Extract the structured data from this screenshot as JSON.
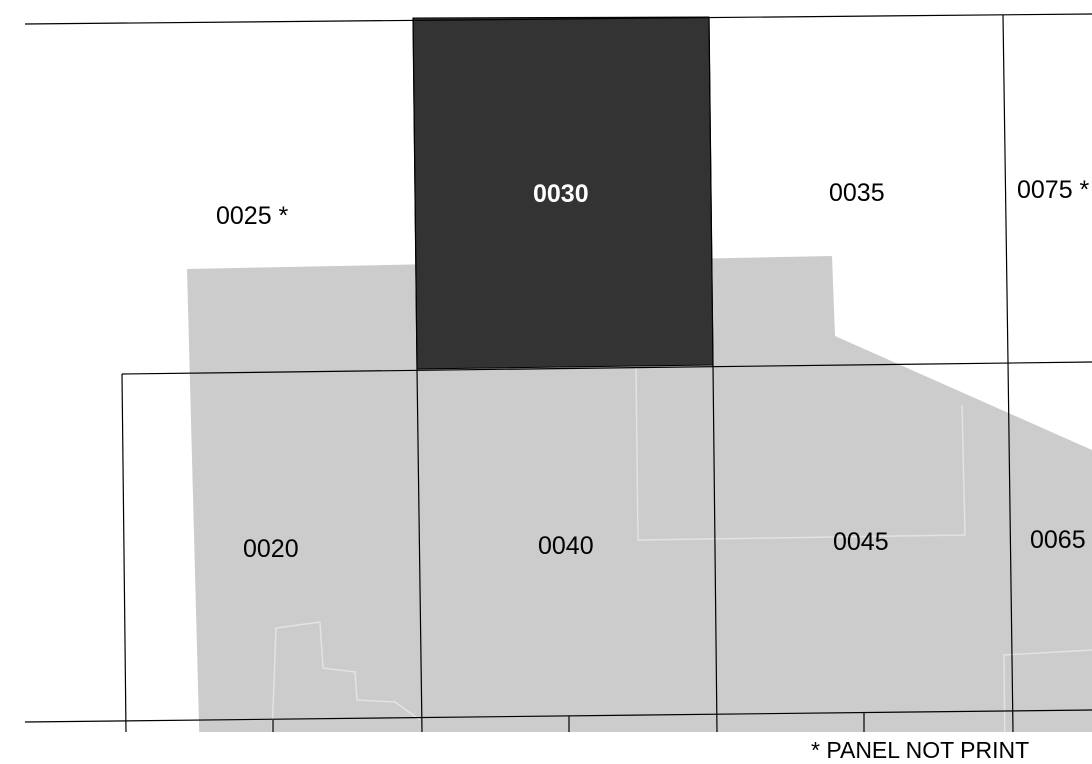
{
  "map": {
    "colors": {
      "background": "#ffffff",
      "shaded_area": "#cccccc",
      "selected_panel": "#333333",
      "grid_line": "#000000",
      "label_text": "#000000",
      "selected_label_text": "#ffffff",
      "internal_boundary": "#dddddd"
    },
    "panels": [
      {
        "id": "0025",
        "label": "0025 *",
        "not_printed": true,
        "selected": false
      },
      {
        "id": "0030",
        "label": "0030",
        "not_printed": false,
        "selected": true
      },
      {
        "id": "0035",
        "label": "0035",
        "not_printed": false,
        "selected": false
      },
      {
        "id": "0075",
        "label": "0075 *",
        "not_printed": true,
        "selected": false
      },
      {
        "id": "0020",
        "label": "0020",
        "not_printed": false,
        "selected": false
      },
      {
        "id": "0040",
        "label": "0040",
        "not_printed": false,
        "selected": false
      },
      {
        "id": "0045",
        "label": "0045",
        "not_printed": false,
        "selected": false
      },
      {
        "id": "0065",
        "label": "0065",
        "not_printed": false,
        "selected": false
      }
    ],
    "footnote": "* PANEL NOT PRINT"
  }
}
